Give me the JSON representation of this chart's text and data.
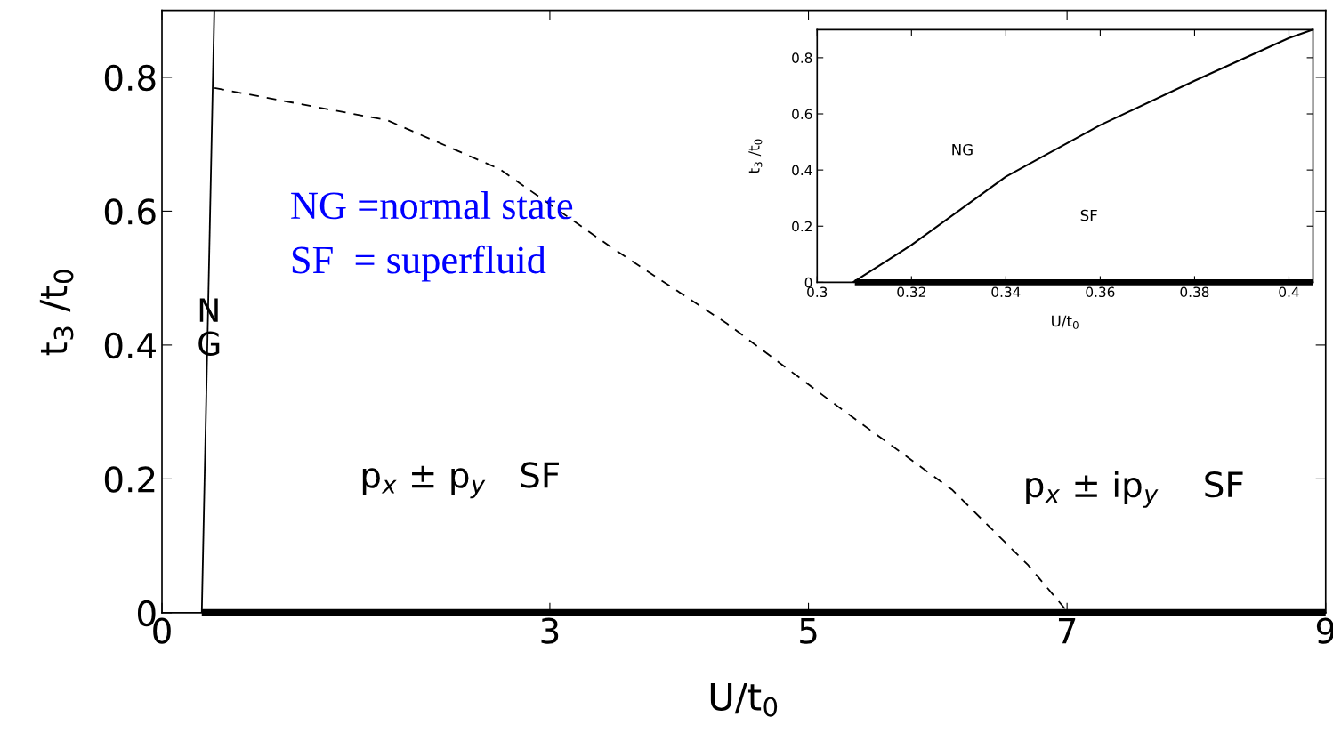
{
  "chart_data": [
    {
      "type": "line",
      "xlabel": "U/t$_{0}$",
      "ylabel": "t$_{3}$ /t$_{0}$",
      "xlim": [
        0,
        9
      ],
      "ylim": [
        0,
        0.9
      ],
      "xticks": [
        0,
        3,
        5,
        7,
        9
      ],
      "yticks": [
        0,
        0.2,
        0.4,
        0.6,
        0.8
      ],
      "grid": false,
      "series": [
        {
          "color": "#000000",
          "line_style": "solid",
          "x": [
            0.308,
            0.405
          ],
          "values": [
            0,
            0.9
          ]
        },
        {
          "color": "#000000",
          "line_style": "dashed",
          "x": [
            0.407,
            1.74,
            2.61,
            3.49,
            4.37,
            5.23,
            6.11,
            6.7,
            7.01
          ],
          "values": [
            0.784,
            0.736,
            0.663,
            0.544,
            0.432,
            0.308,
            0.184,
            0.071,
            0
          ]
        },
        {
          "color": "#000000",
          "line_style": "solid",
          "x": [
            0.308,
            9
          ],
          "values": [
            0,
            0
          ]
        }
      ],
      "annotations": [
        "NG =normal state",
        "SF  = superfluid",
        "NG",
        "p$_{x}$ ± p$_{y}$   SF",
        "p$_{x}$ ± ip$_{y}$    SF"
      ]
    },
    {
      "type": "line",
      "xlabel": "U/t$_{0}$",
      "ylabel": "t$_{3}$ /t$_{0}$",
      "xlim": [
        0.3,
        0.4051
      ],
      "ylim": [
        0,
        0.9
      ],
      "xticks": [
        0.3,
        0.32,
        0.34,
        0.36,
        0.38,
        0.4
      ],
      "yticks": [
        0,
        0.2,
        0.4,
        0.6,
        0.8
      ],
      "grid": false,
      "series": [
        {
          "color": "#000000",
          "line_style": "solid",
          "x": [
            0.3076,
            0.32,
            0.34,
            0.36,
            0.38,
            0.4,
            0.4051
          ],
          "values": [
            0,
            0.133,
            0.376,
            0.56,
            0.718,
            0.87,
            0.9
          ]
        },
        {
          "color": "#000000",
          "line_style": "solid",
          "x": [
            0.308,
            0.4051
          ],
          "values": [
            0,
            0
          ]
        }
      ],
      "annotations": [
        "NG",
        "SF"
      ]
    }
  ]
}
